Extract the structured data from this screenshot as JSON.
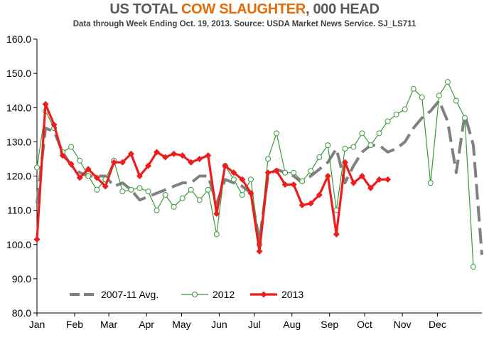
{
  "title": {
    "part1": "US TOTAL ",
    "part2": "COW SLAUGHTER",
    "part3": ", 000 HEAD",
    "highlight_color": "#e36c09"
  },
  "subtitle": "Data through Week Ending Oct. 19, 2013.  Source:  USDA Market News Service.  SJ_LS711",
  "chart_data": {
    "type": "line",
    "title": "US TOTAL COW SLAUGHTER, 000 HEAD",
    "subtitle": "Data through Week Ending Oct. 19, 2013.  Source:  USDA Market News Service.  SJ_LS711",
    "xlabel": "",
    "ylabel": "",
    "ylim": [
      80,
      160
    ],
    "yticks": [
      "80.0",
      "90.0",
      "100.0",
      "110.0",
      "120.0",
      "130.0",
      "140.0",
      "150.0",
      "160.0"
    ],
    "yticks_values": [
      80,
      90,
      100,
      110,
      120,
      130,
      140,
      150,
      160
    ],
    "xlim": [
      1,
      53
    ],
    "months": [
      {
        "label": "Jan",
        "week": 1
      },
      {
        "label": "Feb",
        "week": 5.4
      },
      {
        "label": "Mar",
        "week": 9.4
      },
      {
        "label": "Apr",
        "week": 13.8
      },
      {
        "label": "May",
        "week": 17.9
      },
      {
        "label": "Jun",
        "week": 22.3
      },
      {
        "label": "Jul",
        "week": 26.4
      },
      {
        "label": "Aug",
        "week": 30.8
      },
      {
        "label": "Sep",
        "week": 35.2
      },
      {
        "label": "Oct",
        "week": 39.3
      },
      {
        "label": "Nov",
        "week": 43.7
      },
      {
        "label": "Dec",
        "week": 47.8
      }
    ],
    "grid": false,
    "legend": "bottom-left",
    "series": [
      {
        "name": "2007-11 Avg.",
        "color": "#808080",
        "style": "dashed",
        "values": [
          112,
          134,
          133,
          127,
          123,
          121,
          120,
          120,
          120,
          117,
          118,
          116,
          113,
          114,
          115,
          116,
          117,
          118,
          118,
          120,
          120,
          112,
          119,
          118,
          117,
          115,
          101,
          120,
          122,
          121,
          120,
          118,
          120,
          122,
          124,
          128,
          118,
          123,
          127,
          129,
          129,
          127,
          128,
          130,
          134,
          137,
          139,
          142,
          136,
          121,
          138,
          129,
          97
        ]
      },
      {
        "name": "2012",
        "color": "#3a9a3a",
        "style": "marker-open",
        "values": [
          122.5,
          139,
          134,
          127,
          128.5,
          124.5,
          120,
          116,
          119,
          124.5,
          115.5,
          116,
          116.5,
          115.5,
          110,
          114.5,
          111,
          113.5,
          116,
          113,
          116,
          103,
          123,
          119,
          114.5,
          119,
          100,
          125,
          132.5,
          121,
          121,
          118.5,
          121.5,
          125.5,
          129,
          110,
          128,
          128.5,
          132.5,
          129,
          132.5,
          136,
          138,
          139.5,
          145.5,
          143,
          118,
          143.5,
          147.5,
          142,
          137,
          93.5
        ]
      },
      {
        "name": "2013",
        "color": "#ee1c1c",
        "style": "marker-filled",
        "values": [
          101.5,
          141,
          135,
          126,
          123.5,
          119.5,
          122,
          119.5,
          117,
          124,
          124,
          126.5,
          120,
          123,
          127,
          125.5,
          126.5,
          126,
          124,
          125,
          126,
          109,
          123,
          121,
          119,
          115,
          98,
          121,
          121.5,
          117.5,
          117.5,
          111.5,
          112,
          114.5,
          120,
          103,
          124,
          118,
          120,
          116.5,
          119,
          119
        ]
      }
    ]
  }
}
